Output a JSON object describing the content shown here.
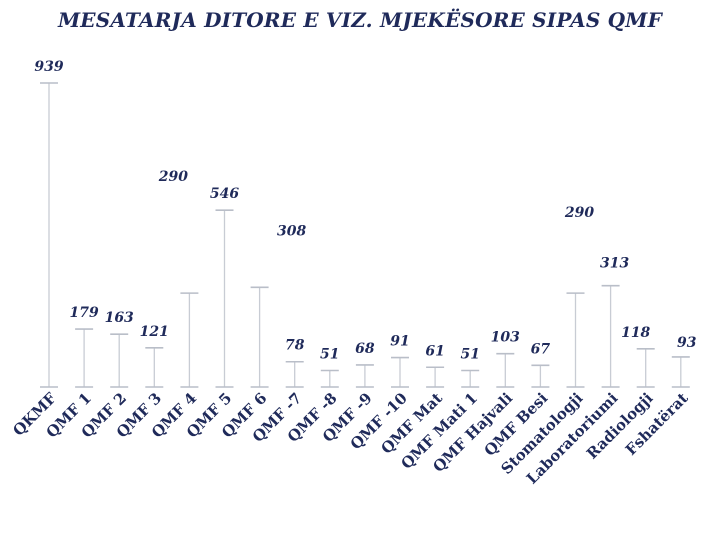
{
  "chart_data": {
    "type": "bar",
    "title": "MESATARJA DITORE  E VIZ. MJEKËSORE SIPAS QMF",
    "xlabel": "",
    "ylabel": "",
    "ylim": [
      0,
      939
    ],
    "grid": false,
    "legend": "none",
    "bar_color": "#c8ccd4",
    "text_color": "#1f2a5a",
    "categories": [
      "QKMF",
      "QMF 1",
      "QMF 2",
      "QMF 3",
      "QMF 4",
      "QMF 5",
      "QMF 6",
      "QMF -7",
      "QMF -8",
      "QMF -9",
      "QMF -10",
      "QMF Mat",
      "QMF Mati 1",
      "QMF Hajvali",
      "QMF Besi",
      "Stomatologji",
      "Laboratoriumi",
      "Radiologji",
      "Fshatërat"
    ],
    "values": [
      939,
      179,
      163,
      121,
      290,
      546,
      308,
      78,
      51,
      68,
      91,
      61,
      51,
      103,
      67,
      290,
      313,
      118,
      93
    ],
    "labels": [
      "939",
      "179",
      "163",
      "121",
      "290",
      "546",
      "308",
      "78",
      "51",
      "68",
      "91",
      "61",
      "51",
      "103",
      "67",
      "290",
      "313",
      "118",
      "93"
    ]
  }
}
